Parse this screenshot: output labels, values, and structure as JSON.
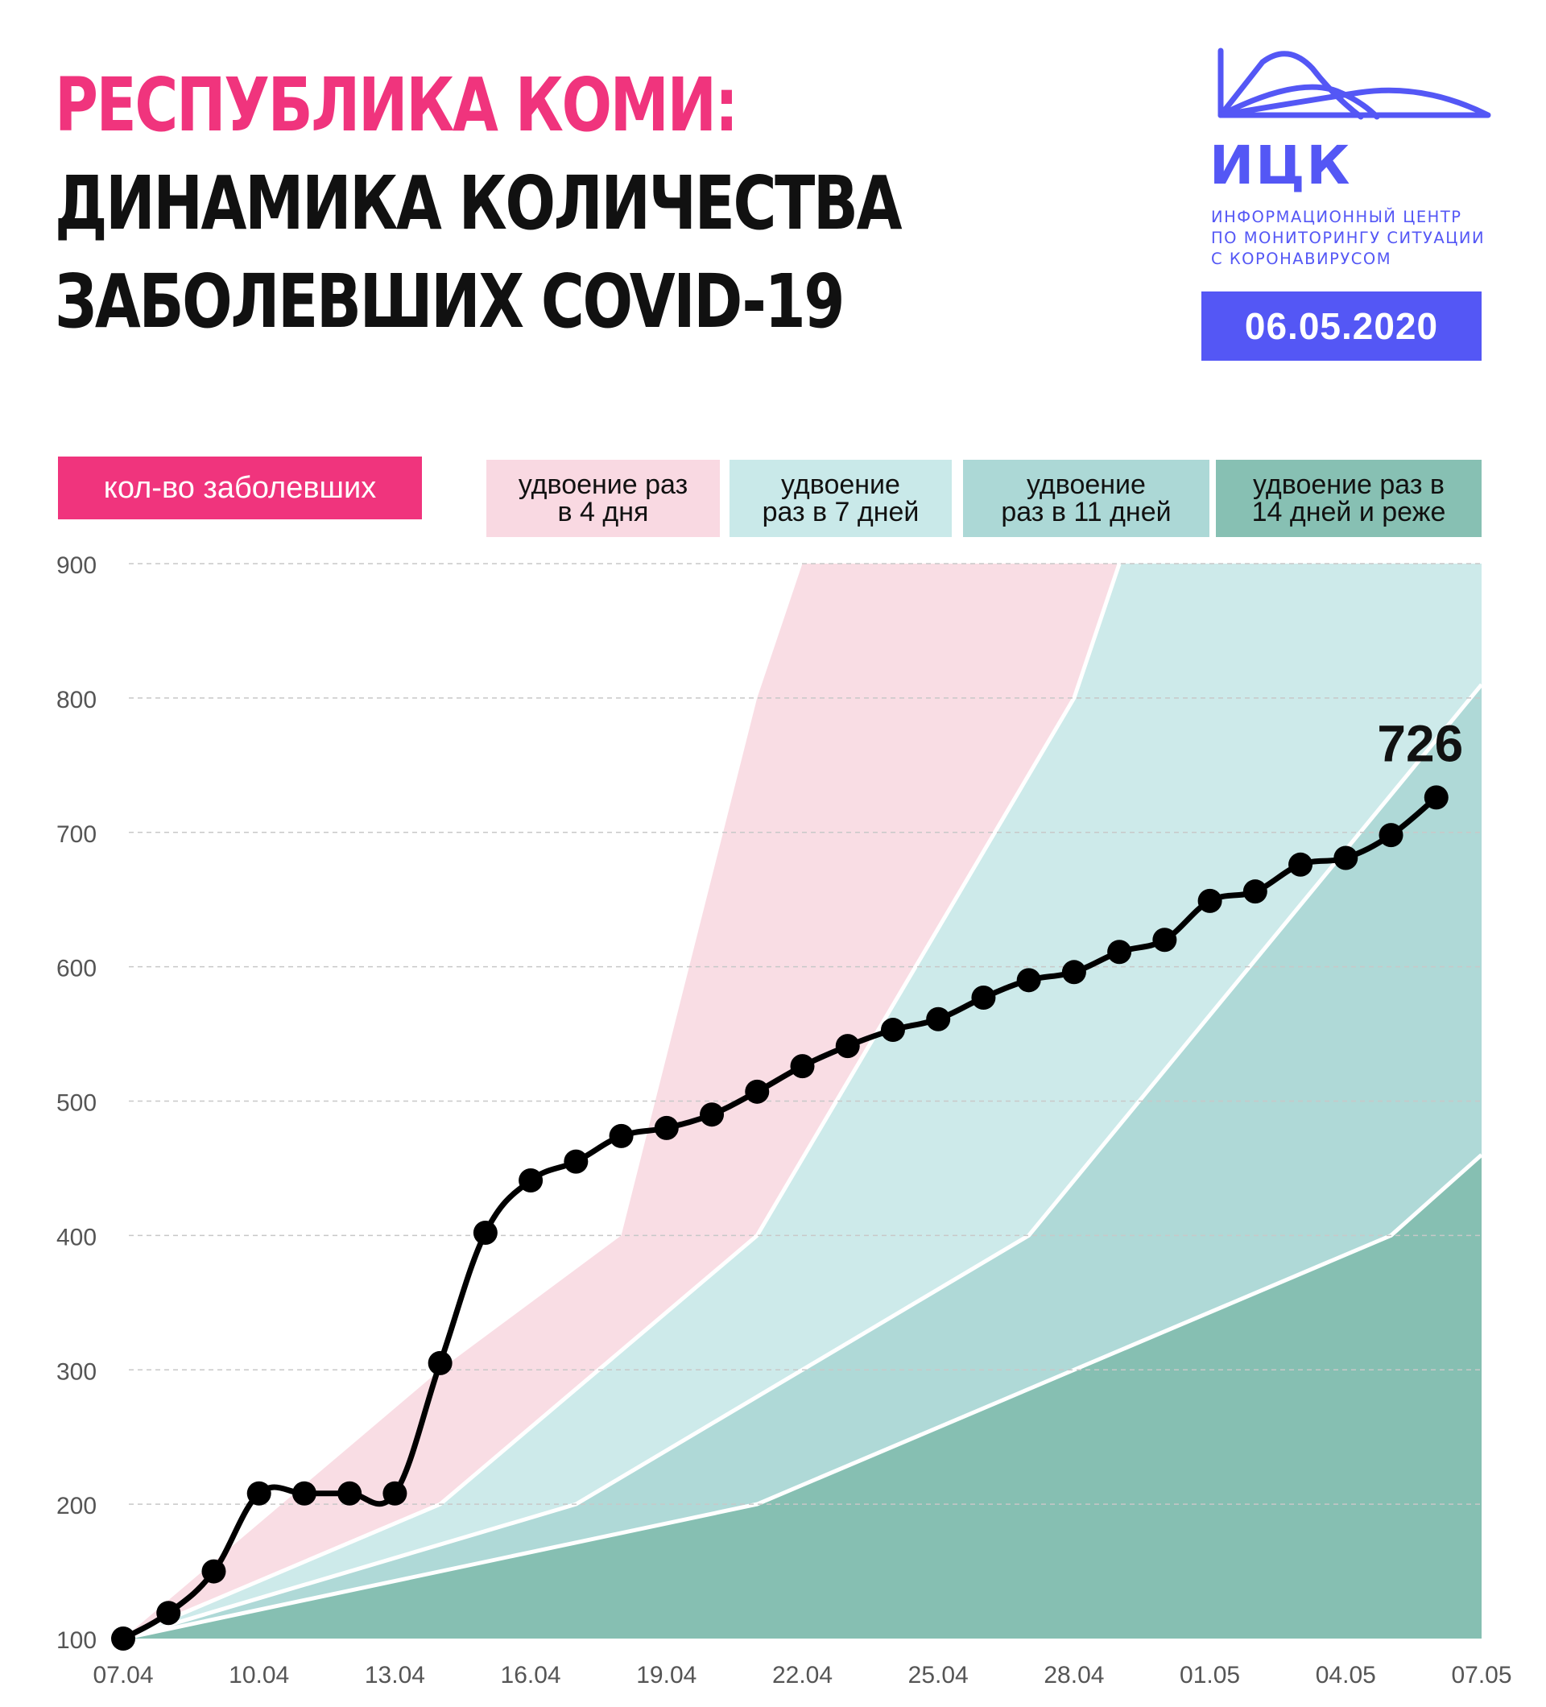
{
  "header": {
    "title_line1": "РЕСПУБЛИКА КОМИ:",
    "title_line2": "ДИНАМИКА КОЛИЧЕСТВА",
    "title_line3": "ЗАБОЛЕВШИХ COVID-19"
  },
  "logo": {
    "abbr": "ИЦК",
    "line1": "ИНФОРМАЦИОННЫЙ ЦЕНТР",
    "line2": "ПО МОНИТОРИНГУ СИТУАЦИИ",
    "line3": "С КОРОНАВИРУСОМ",
    "color": "#5457f5"
  },
  "date": "06.05.2020",
  "legend": {
    "main": "кол-во заболевших",
    "d4_line1": "удвоение раз",
    "d4_line2": "в 4 дня",
    "d7_line1": "удвоение",
    "d7_line2": "раз в 7 дней",
    "d11_line1": "удвоение",
    "d11_line2": "раз в 11 дней",
    "d14_line1": "удвоение раз в",
    "d14_line2": "14 дней и реже"
  },
  "colors": {
    "accent": "#f0347d",
    "band_4": "#f9dde4",
    "band_7": "#cdeaea",
    "band_11": "#afd9d7",
    "band_14": "#86bfb2",
    "line": "#000000"
  },
  "chart_data": {
    "type": "line",
    "x_tick_labels": [
      "07.04",
      "10.04",
      "13.04",
      "16.04",
      "19.04",
      "22.04",
      "25.04",
      "28.04",
      "01.05",
      "04.05",
      "07.05"
    ],
    "y_ticks": [
      100,
      200,
      300,
      400,
      500,
      600,
      700,
      800,
      900
    ],
    "ylim": [
      100,
      900
    ],
    "x": [
      "07.04",
      "08.04",
      "09.04",
      "10.04",
      "11.04",
      "12.04",
      "13.04",
      "14.04",
      "15.04",
      "16.04",
      "17.04",
      "18.04",
      "19.04",
      "20.04",
      "21.04",
      "22.04",
      "23.04",
      "24.04",
      "25.04",
      "26.04",
      "27.04",
      "28.04",
      "29.04",
      "30.04",
      "01.05",
      "02.05",
      "03.05",
      "04.05",
      "05.05",
      "06.05"
    ],
    "series": [
      {
        "values": [
          100,
          119,
          150,
          208,
          208,
          208,
          208,
          305,
          402,
          441,
          455,
          474,
          480,
          490,
          507,
          526,
          541,
          553,
          561,
          577,
          590,
          596,
          611,
          620,
          649,
          656,
          676,
          681,
          698,
          726
        ]
      }
    ],
    "doubling_bands": [
      {
        "label": "удвоение раз в 4 дня",
        "upper_edge": [
          [
            0,
            100
          ],
          [
            7,
            300
          ],
          [
            11,
            400
          ],
          [
            14,
            800
          ],
          [
            15,
            1000
          ]
        ]
      },
      {
        "label": "удвоение раз в 7 дней",
        "upper_edge": [
          [
            0,
            100
          ],
          [
            7,
            200
          ],
          [
            14,
            400
          ],
          [
            21,
            800
          ],
          [
            22,
            1000
          ]
        ]
      },
      {
        "label": "удвоение раз в 11 дней",
        "upper_edge": [
          [
            0,
            100
          ],
          [
            10,
            200
          ],
          [
            20,
            400
          ],
          [
            30,
            810
          ]
        ]
      },
      {
        "label": "удвоение раз в 14 дней и реже",
        "upper_edge": [
          [
            0,
            100
          ],
          [
            14,
            200
          ],
          [
            28,
            400
          ],
          [
            30,
            460
          ]
        ]
      }
    ],
    "annotations": [
      {
        "text": "726",
        "x": "06.05",
        "y": 726
      }
    ],
    "grid": true
  }
}
